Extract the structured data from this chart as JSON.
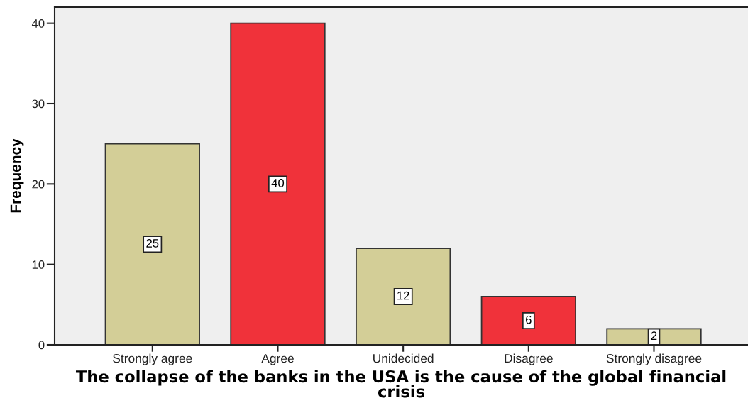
{
  "chart_data": {
    "type": "bar",
    "categories": [
      "Strongly agree",
      "Agree",
      "Unidecided",
      "Disagree",
      "Strongly disagree"
    ],
    "values": [
      25,
      40,
      12,
      6,
      2
    ],
    "colors": [
      "#d3ce97",
      "#f0323a",
      "#d3ce97",
      "#f0323a",
      "#d3ce97"
    ],
    "xlabel": "The collapse of the banks in the USA is the cause of the global financial crisis",
    "ylabel": "Frequency",
    "ylim": [
      0,
      42
    ],
    "yticks": [
      0,
      10,
      20,
      30,
      40
    ],
    "data_labels": true
  }
}
